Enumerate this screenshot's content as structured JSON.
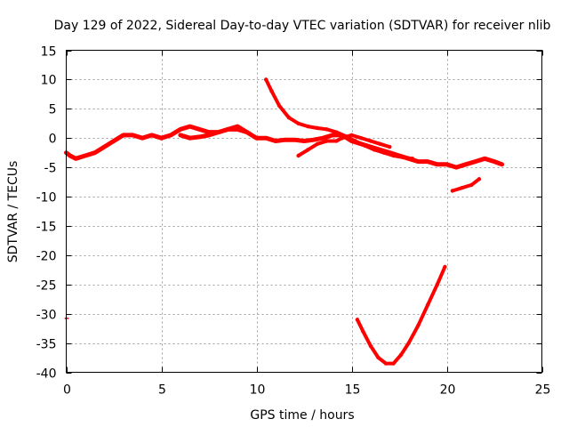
{
  "chart_data": {
    "type": "scatter",
    "title": "Day 129 of 2022, Sidereal Day-to-day VTEC variation (SDTVAR) for receiver nlib",
    "xlabel": "GPS time / hours",
    "ylabel": "SDTVAR / TECUs",
    "xlim": [
      0,
      25
    ],
    "ylim": [
      -40,
      15
    ],
    "xticks": [
      "0",
      "5",
      "10",
      "15",
      "20",
      "25"
    ],
    "yticks": [
      "15",
      "10",
      "5",
      "0",
      "-5",
      "-10",
      "-15",
      "-20",
      "-25",
      "-30",
      "-35",
      "-40"
    ],
    "grid": true,
    "color": "#ff0000",
    "series": [
      {
        "name": "arc-main",
        "x": [
          0.0,
          0.2,
          0.5,
          1.0,
          1.5,
          2.0,
          2.5,
          3.0,
          3.5,
          4.0,
          4.5,
          5.0,
          5.5,
          6.0,
          6.5,
          7.0,
          7.5,
          8.0,
          8.5,
          9.0,
          9.5,
          10.0,
          10.5,
          11.0,
          11.5,
          12.0,
          12.5,
          13.0,
          13.5,
          14.0,
          14.5,
          15.0,
          15.5,
          16.0,
          16.5,
          17.0,
          17.5,
          18.0,
          18.5,
          19.0,
          19.5,
          20.0,
          20.5,
          21.0,
          21.5,
          22.0,
          22.5,
          22.9
        ],
        "y": [
          -2.5,
          -3.0,
          -3.5,
          -3.0,
          -2.5,
          -1.5,
          -0.5,
          0.5,
          0.5,
          0.0,
          0.5,
          0.0,
          0.5,
          1.5,
          2.0,
          1.5,
          1.0,
          1.0,
          1.5,
          2.0,
          1.0,
          0.0,
          0.0,
          -0.5,
          -0.3,
          -0.3,
          -0.5,
          -0.3,
          0.0,
          0.5,
          0.5,
          -0.5,
          -1.0,
          -1.5,
          -2.0,
          -2.5,
          -3.0,
          -3.5,
          -4.0,
          -4.0,
          -4.5,
          -4.5,
          -5.0,
          -4.5,
          -4.0,
          -3.5,
          -4.0,
          -4.5
        ]
      },
      {
        "name": "arc-loop-a",
        "x": [
          6.0,
          6.5,
          7.0,
          7.5,
          8.0,
          8.5,
          9.0,
          9.5
        ],
        "y": [
          0.5,
          0.0,
          0.2,
          0.5,
          1.0,
          1.5,
          1.5,
          1.0
        ]
      },
      {
        "name": "arc-descending",
        "x": [
          10.5,
          10.8,
          11.2,
          11.7,
          12.2,
          12.7,
          13.2,
          13.7,
          14.2,
          14.7,
          15.2,
          15.7,
          16.2,
          16.7,
          17.2,
          17.7,
          18.2
        ],
        "y": [
          10.0,
          8.0,
          5.5,
          3.5,
          2.5,
          2.0,
          1.7,
          1.5,
          1.0,
          0.3,
          -0.5,
          -1.3,
          -2.0,
          -2.5,
          -3.0,
          -3.3,
          -3.5
        ]
      },
      {
        "name": "arc-rising",
        "x": [
          12.2,
          12.7,
          13.2,
          13.7,
          14.2,
          14.5,
          15.0,
          15.5,
          16.0,
          16.5,
          17.0
        ],
        "y": [
          -3.0,
          -2.0,
          -1.0,
          -0.5,
          -0.5,
          0.0,
          0.5,
          0.0,
          -0.5,
          -1.0,
          -1.5
        ]
      },
      {
        "name": "arc-lowright",
        "x": [
          20.3,
          20.8,
          21.3,
          21.7
        ],
        "y": [
          -9.0,
          -8.5,
          -8.0,
          -7.0
        ]
      },
      {
        "name": "arc-deep-valley",
        "x": [
          15.3,
          15.6,
          16.0,
          16.4,
          16.8,
          17.2,
          17.6,
          18.0,
          18.5,
          19.0,
          19.5,
          19.9
        ],
        "y": [
          -31.0,
          -33.0,
          -35.5,
          -37.5,
          -38.5,
          -38.5,
          -37.0,
          -35.0,
          -32.0,
          -28.5,
          -25.0,
          -22.0
        ]
      },
      {
        "name": "tick-outlier",
        "x": [
          -0.05,
          0.1
        ],
        "y": [
          -30.8,
          -30.8
        ]
      }
    ]
  }
}
